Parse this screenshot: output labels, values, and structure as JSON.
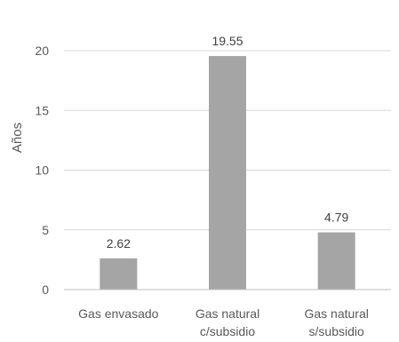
{
  "chart_data": {
    "type": "bar",
    "title": "",
    "xlabel": "",
    "ylabel": "Años",
    "ylim": [
      0,
      20
    ],
    "yticks": [
      0,
      5,
      10,
      15,
      20
    ],
    "grid": true,
    "legend": "none",
    "categories": [
      [
        "Gas envasado"
      ],
      [
        "Gas natural",
        "c/subsidio"
      ],
      [
        "Gas natural",
        "s/subsidio"
      ]
    ],
    "values": [
      2.62,
      19.55,
      4.79
    ],
    "data_labels": [
      "2.62",
      "19.55",
      "4.79"
    ],
    "colors": {
      "bar": "#a5a5a5",
      "grid": "#d9d9d9",
      "axis": "#bfbfbf",
      "text": "#595959"
    }
  }
}
